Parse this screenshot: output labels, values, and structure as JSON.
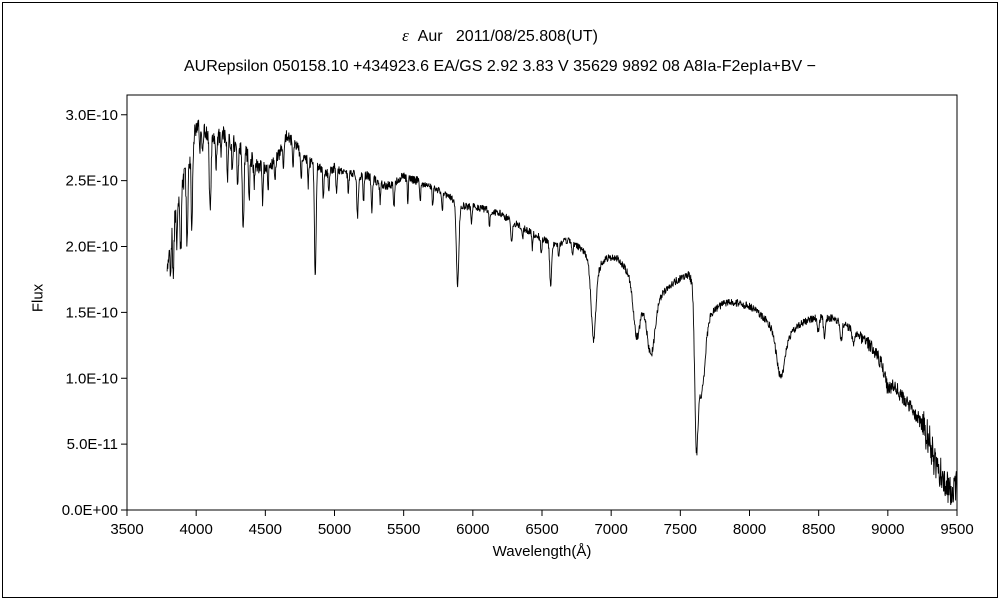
{
  "chart_data": {
    "type": "line",
    "title": "ε Aur  2011/08/25.808(UT)",
    "title_greek": "ε",
    "title_rest": "  Aur   2011/08/25.808(UT)",
    "subtitle": "AURepsilon 050158.10 +434923.6 EA/GS 2.92 3.83 V 35629 9892 08 A8Ia-F2epIa+BV −",
    "xlabel": "Wavelength(Å)",
    "ylabel": "Flux",
    "xlim": [
      3500,
      9500
    ],
    "ylim": [
      0,
      3.15e-10
    ],
    "grid": false,
    "legend": null,
    "background": "#ffffff",
    "axis_color": "#000000",
    "x_ticks": [
      3500,
      4000,
      4500,
      5000,
      5500,
      6000,
      6500,
      7000,
      7500,
      8000,
      8500,
      9000,
      9500
    ],
    "y_ticks": [
      {
        "value": 0,
        "label": "0.0E+00"
      },
      {
        "value": 5e-11,
        "label": "5.0E-11"
      },
      {
        "value": 1e-10,
        "label": "1.0E-10"
      },
      {
        "value": 1.5e-10,
        "label": "1.5E-10"
      },
      {
        "value": 2e-10,
        "label": "2.0E-10"
      },
      {
        "value": 2.5e-10,
        "label": "2.5E-10"
      },
      {
        "value": 3e-10,
        "label": "3.0E-10"
      }
    ],
    "flux_scale": 1e-10,
    "series": [
      {
        "name": "epsilon-aur-spectrum",
        "color": "#000000",
        "x_range": [
          3790,
          9500
        ],
        "continuum_points": [
          [
            3790,
            1.8
          ],
          [
            3805,
            2.0
          ],
          [
            3820,
            2.1
          ],
          [
            3840,
            2.25
          ],
          [
            3860,
            2.3
          ],
          [
            3880,
            2.38
          ],
          [
            3900,
            2.48
          ],
          [
            3920,
            2.55
          ],
          [
            3940,
            2.58
          ],
          [
            3960,
            2.68
          ],
          [
            3980,
            2.82
          ],
          [
            4000,
            2.92
          ],
          [
            4020,
            2.93
          ],
          [
            4040,
            2.9
          ],
          [
            4070,
            2.87
          ],
          [
            4100,
            2.82
          ],
          [
            4150,
            2.83
          ],
          [
            4200,
            2.85
          ],
          [
            4250,
            2.8
          ],
          [
            4300,
            2.76
          ],
          [
            4350,
            2.72
          ],
          [
            4400,
            2.66
          ],
          [
            4450,
            2.62
          ],
          [
            4500,
            2.6
          ],
          [
            4550,
            2.62
          ],
          [
            4600,
            2.7
          ],
          [
            4650,
            2.84
          ],
          [
            4700,
            2.8
          ],
          [
            4750,
            2.72
          ],
          [
            4800,
            2.66
          ],
          [
            4860,
            2.62
          ],
          [
            4900,
            2.6
          ],
          [
            4950,
            2.56
          ],
          [
            5000,
            2.6
          ],
          [
            5060,
            2.56
          ],
          [
            5120,
            2.55
          ],
          [
            5180,
            2.54
          ],
          [
            5240,
            2.54
          ],
          [
            5300,
            2.5
          ],
          [
            5360,
            2.46
          ],
          [
            5420,
            2.47
          ],
          [
            5480,
            2.53
          ],
          [
            5540,
            2.52
          ],
          [
            5600,
            2.5
          ],
          [
            5660,
            2.46
          ],
          [
            5720,
            2.44
          ],
          [
            5780,
            2.41
          ],
          [
            5840,
            2.37
          ],
          [
            5900,
            2.32
          ],
          [
            5960,
            2.3
          ],
          [
            6020,
            2.3
          ],
          [
            6100,
            2.28
          ],
          [
            6200,
            2.25
          ],
          [
            6300,
            2.18
          ],
          [
            6400,
            2.12
          ],
          [
            6500,
            2.06
          ],
          [
            6560,
            2.03
          ],
          [
            6620,
            2.02
          ],
          [
            6680,
            2.05
          ],
          [
            6740,
            2.02
          ],
          [
            6800,
            1.96
          ],
          [
            6850,
            1.87
          ],
          [
            6900,
            1.82
          ],
          [
            6950,
            1.9
          ],
          [
            7000,
            1.92
          ],
          [
            7060,
            1.9
          ],
          [
            7120,
            1.8
          ],
          [
            7170,
            1.66
          ],
          [
            7220,
            1.58
          ],
          [
            7270,
            1.54
          ],
          [
            7320,
            1.6
          ],
          [
            7370,
            1.64
          ],
          [
            7420,
            1.7
          ],
          [
            7470,
            1.74
          ],
          [
            7520,
            1.77
          ],
          [
            7560,
            1.78
          ],
          [
            7600,
            1.76
          ],
          [
            7650,
            1.7
          ],
          [
            7700,
            1.48
          ],
          [
            7750,
            1.52
          ],
          [
            7800,
            1.56
          ],
          [
            7860,
            1.58
          ],
          [
            7920,
            1.57
          ],
          [
            7980,
            1.55
          ],
          [
            8040,
            1.53
          ],
          [
            8100,
            1.46
          ],
          [
            8150,
            1.4
          ],
          [
            8200,
            1.33
          ],
          [
            8250,
            1.3
          ],
          [
            8300,
            1.34
          ],
          [
            8350,
            1.4
          ],
          [
            8400,
            1.43
          ],
          [
            8450,
            1.45
          ],
          [
            8500,
            1.47
          ],
          [
            8560,
            1.46
          ],
          [
            8620,
            1.45
          ],
          [
            8680,
            1.41
          ],
          [
            8740,
            1.37
          ],
          [
            8800,
            1.32
          ],
          [
            8860,
            1.26
          ],
          [
            8920,
            1.18
          ],
          [
            8980,
            1.06
          ],
          [
            9040,
            0.96
          ],
          [
            9100,
            0.86
          ],
          [
            9160,
            0.79
          ],
          [
            9220,
            0.7
          ],
          [
            9280,
            0.58
          ],
          [
            9340,
            0.46
          ],
          [
            9400,
            0.28
          ],
          [
            9440,
            0.16
          ],
          [
            9470,
            0.1
          ],
          [
            9500,
            0.18
          ]
        ],
        "absorption_lines": [
          [
            3815,
            0.3,
            4
          ],
          [
            3835,
            0.45,
            5
          ],
          [
            3860,
            0.25,
            4
          ],
          [
            3889,
            0.48,
            5
          ],
          [
            3934,
            0.55,
            5
          ],
          [
            3969,
            0.6,
            5
          ],
          [
            4026,
            0.22,
            4
          ],
          [
            4046,
            0.18,
            4
          ],
          [
            4101,
            0.55,
            6
          ],
          [
            4144,
            0.25,
            4
          ],
          [
            4180,
            0.18,
            4
          ],
          [
            4226,
            0.3,
            4
          ],
          [
            4260,
            0.18,
            4
          ],
          [
            4300,
            0.28,
            5
          ],
          [
            4340,
            0.55,
            6
          ],
          [
            4383,
            0.33,
            4
          ],
          [
            4420,
            0.18,
            4
          ],
          [
            4481,
            0.28,
            4
          ],
          [
            4520,
            0.16,
            4
          ],
          [
            4570,
            0.16,
            4
          ],
          [
            4630,
            0.18,
            4
          ],
          [
            4700,
            0.2,
            4
          ],
          [
            4760,
            0.18,
            4
          ],
          [
            4810,
            0.18,
            4
          ],
          [
            4861,
            0.85,
            6
          ],
          [
            4920,
            0.24,
            4
          ],
          [
            4960,
            0.16,
            4
          ],
          [
            5015,
            0.2,
            4
          ],
          [
            5100,
            0.15,
            4
          ],
          [
            5167,
            0.3,
            6
          ],
          [
            5210,
            0.2,
            4
          ],
          [
            5270,
            0.24,
            5
          ],
          [
            5330,
            0.15,
            4
          ],
          [
            5430,
            0.18,
            4
          ],
          [
            5530,
            0.2,
            4
          ],
          [
            5620,
            0.14,
            4
          ],
          [
            5710,
            0.13,
            4
          ],
          [
            5780,
            0.12,
            4
          ],
          [
            5890,
            0.62,
            9
          ],
          [
            5990,
            0.12,
            4
          ],
          [
            6120,
            0.12,
            4
          ],
          [
            6280,
            0.16,
            6
          ],
          [
            6360,
            0.1,
            4
          ],
          [
            6430,
            0.12,
            4
          ],
          [
            6495,
            0.12,
            4
          ],
          [
            6563,
            0.33,
            7
          ],
          [
            6620,
            0.1,
            4
          ],
          [
            6720,
            0.1,
            4
          ],
          [
            6872,
            0.55,
            16
          ],
          [
            7185,
            0.32,
            22
          ],
          [
            7290,
            0.38,
            28
          ],
          [
            7615,
            0.95,
            12
          ],
          [
            7650,
            0.8,
            26
          ],
          [
            8225,
            0.3,
            28
          ],
          [
            8498,
            0.12,
            7
          ],
          [
            8542,
            0.15,
            7
          ],
          [
            8662,
            0.14,
            7
          ],
          [
            8750,
            0.1,
            8
          ],
          [
            9000,
            0.1,
            20
          ],
          [
            9350,
            0.12,
            25
          ]
        ],
        "noise": {
          "seed": 20110825,
          "step": 2.5,
          "default_amplitude": 0.03,
          "regions": [
            [
              3790,
              4000,
              0.085
            ],
            [
              4000,
              4500,
              0.065
            ],
            [
              4500,
              5000,
              0.045
            ],
            [
              5000,
              5600,
              0.035
            ],
            [
              5600,
              6800,
              0.028
            ],
            [
              6800,
              7550,
              0.03
            ],
            [
              7550,
              7700,
              0.04
            ],
            [
              7700,
              8800,
              0.03
            ],
            [
              8800,
              9250,
              0.055
            ],
            [
              9250,
              9500,
              0.13
            ]
          ]
        }
      }
    ]
  }
}
